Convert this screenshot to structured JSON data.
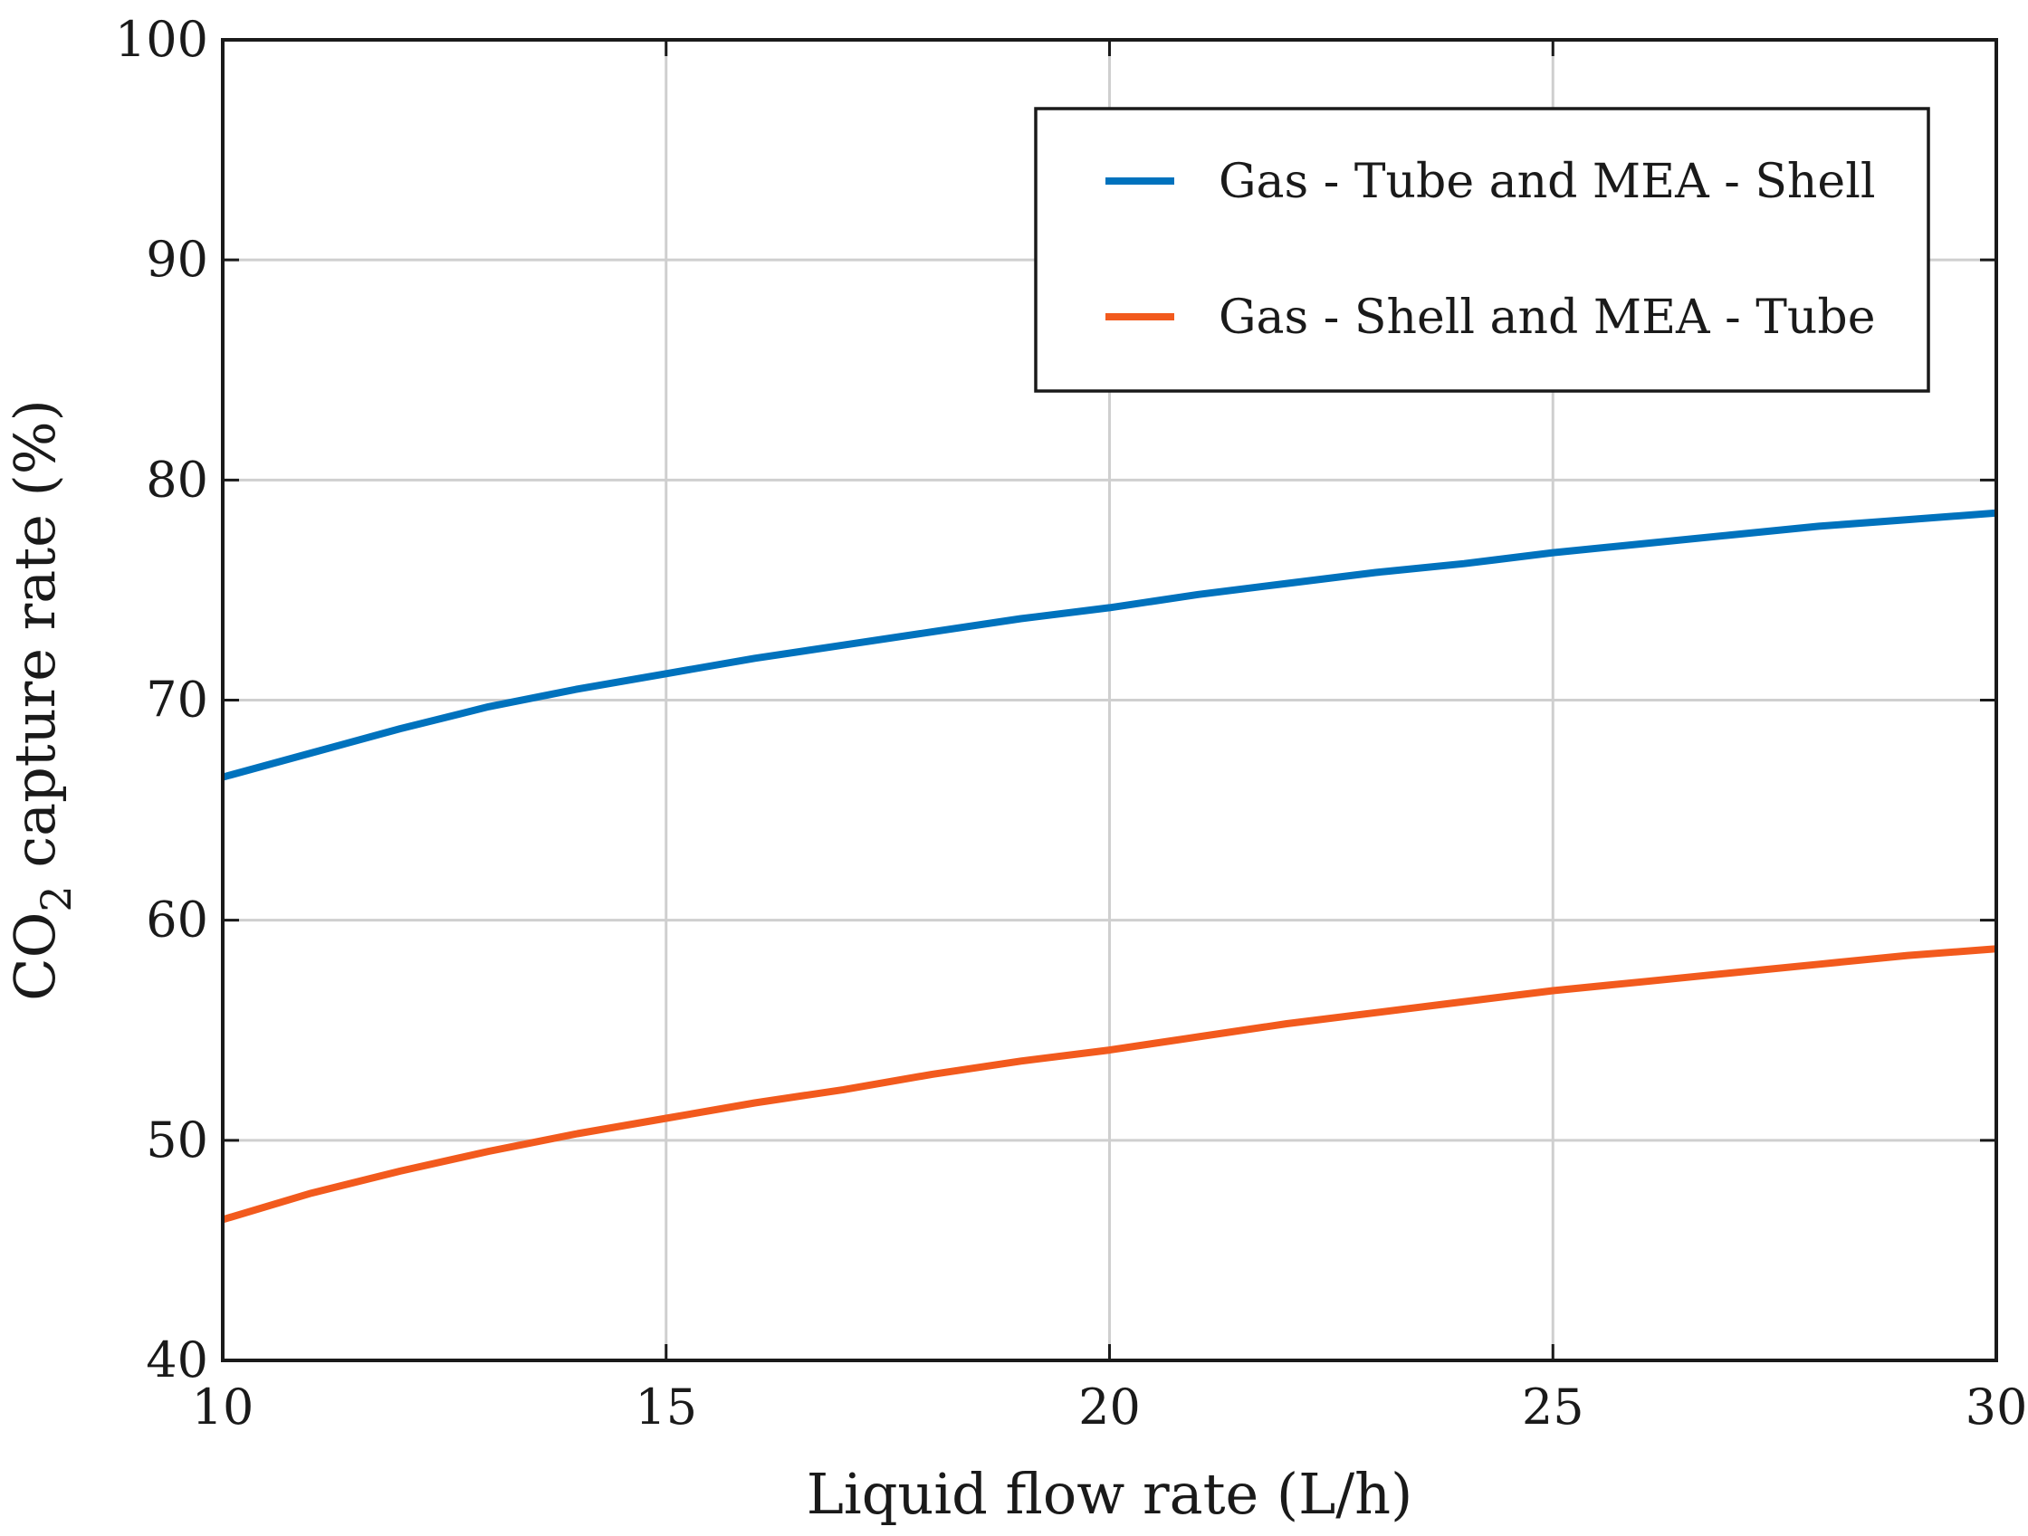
{
  "chart_data": {
    "type": "line",
    "title": "",
    "xlabel": "Liquid flow rate (L/h)",
    "ylabel": {
      "prefix": "CO",
      "subscript": "2",
      "suffix": " capture rate (%)"
    },
    "xlim": [
      10,
      30
    ],
    "ylim": [
      40,
      100
    ],
    "xticks": [
      10,
      15,
      20,
      25,
      30
    ],
    "yticks": [
      40,
      50,
      60,
      70,
      80,
      90,
      100
    ],
    "grid": true,
    "legend_position": "top-right",
    "x": [
      10,
      11,
      12,
      13,
      14,
      15,
      16,
      17,
      18,
      19,
      20,
      21,
      22,
      23,
      24,
      25,
      26,
      27,
      28,
      29,
      30
    ],
    "series": [
      {
        "name": "Gas - Tube and MEA - Shell",
        "color": "#0072BD",
        "values": [
          66.5,
          67.6,
          68.7,
          69.7,
          70.5,
          71.2,
          71.9,
          72.5,
          73.1,
          73.7,
          74.2,
          74.8,
          75.3,
          75.8,
          76.2,
          76.7,
          77.1,
          77.5,
          77.9,
          78.2,
          78.5
        ]
      },
      {
        "name": "Gas - Shell and MEA - Tube",
        "color": "#F25A1D",
        "values": [
          46.4,
          47.6,
          48.6,
          49.5,
          50.3,
          51.0,
          51.7,
          52.3,
          53.0,
          53.6,
          54.1,
          54.7,
          55.3,
          55.8,
          56.3,
          56.8,
          57.2,
          57.6,
          58.0,
          58.4,
          58.7
        ]
      }
    ]
  }
}
